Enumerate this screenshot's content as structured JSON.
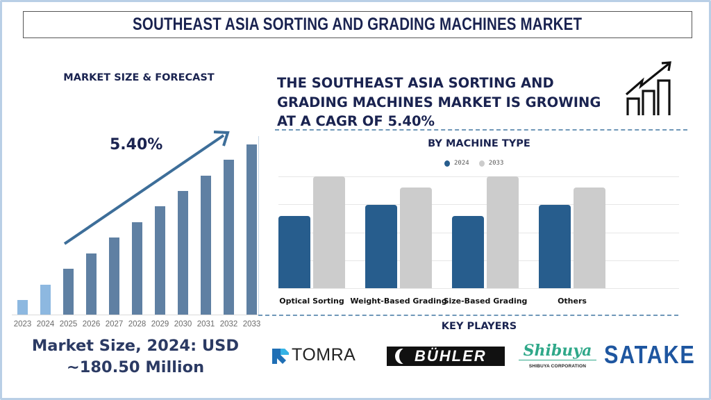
{
  "title": "SOUTHEAST ASIA SORTING AND GRADING MACHINES MARKET",
  "left_panel": {
    "heading": "MARKET SIZE & FORECAST",
    "cagr_label": "5.40%",
    "market_size_line1": "Market Size, 2024: USD",
    "market_size_line2": "~180.50 Million"
  },
  "right_panel": {
    "headline": "THE SOUTHEAST ASIA SORTING AND GRADING MACHINES MARKET IS GROWING AT A CAGR OF 5.40%",
    "segment_heading": "BY MACHINE TYPE",
    "key_players_heading": "KEY PLAYERS",
    "key_players": [
      {
        "name": "TOMRA"
      },
      {
        "name": "BÜHLER"
      },
      {
        "name": "Shibuya",
        "subtitle": "SHIBUYA CORPORATION"
      },
      {
        "name": "SATAKE"
      }
    ]
  },
  "colors": {
    "title_navy": "#1a2350",
    "historic_bar": "#8db8e0",
    "forecast_bar": "#5f80a3",
    "arrow": "#3d6e99",
    "series_2024": "#275d8d",
    "series_2033": "#cccccc"
  },
  "chart_data": [
    {
      "type": "bar",
      "title": "MARKET SIZE & FORECAST",
      "categories": [
        "2023",
        "2024",
        "2025",
        "2026",
        "2027",
        "2028",
        "2029",
        "2030",
        "2031",
        "2032",
        "2033"
      ],
      "values": [
        21,
        43,
        66,
        88,
        111,
        133,
        156,
        178,
        200,
        223,
        245
      ],
      "value_units": "relative bar height (px, unlabeled axis)",
      "historic": [
        "2023",
        "2024"
      ],
      "forecast": [
        "2025",
        "2026",
        "2027",
        "2028",
        "2029",
        "2030",
        "2031",
        "2032",
        "2033"
      ],
      "annotation": "5.40%",
      "xlabel": "",
      "ylabel": "",
      "grid": false
    },
    {
      "type": "bar",
      "title": "BY MACHINE TYPE",
      "categories": [
        "Optical Sorting",
        "Weight-Based Grading",
        "Size-Based Grading",
        "Others"
      ],
      "series": [
        {
          "name": "2024",
          "values": [
            104,
            120,
            104,
            120
          ]
        },
        {
          "name": "2033",
          "values": [
            161,
            145,
            161,
            145
          ]
        }
      ],
      "value_units": "relative bar height (px, unlabeled axis)",
      "legend_position": "top",
      "grid": true,
      "gridlines": 5
    }
  ]
}
